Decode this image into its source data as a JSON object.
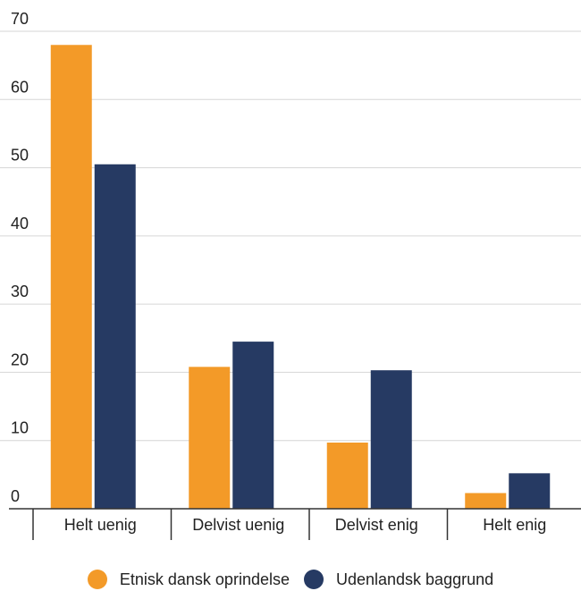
{
  "chart_data": {
    "type": "bar",
    "title": "",
    "xlabel": "",
    "ylabel": "",
    "ylim": [
      0,
      70
    ],
    "yticks": [
      0,
      10,
      20,
      30,
      40,
      50,
      60,
      70
    ],
    "grid": true,
    "legend_position": "bottom",
    "categories": [
      "Helt uenig",
      "Delvist uenig",
      "Delvist enig",
      "Helt enig"
    ],
    "series": [
      {
        "name": "Etnisk dansk oprindelse",
        "color": "#f39a28",
        "values": [
          68,
          20.8,
          9.7,
          2.3
        ]
      },
      {
        "name": "Udenlandsk baggrund",
        "color": "#263a63",
        "values": [
          50.5,
          24.5,
          20.3,
          5.2
        ]
      }
    ]
  }
}
